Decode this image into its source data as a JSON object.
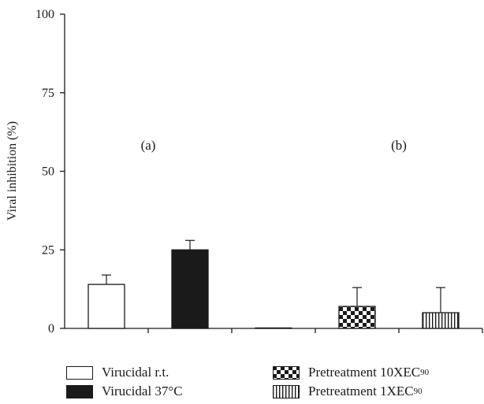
{
  "chart_data": {
    "type": "bar",
    "ylabel": "Viral inhibition (%)",
    "xlabel": "",
    "ylim": [
      0,
      100
    ],
    "yticks": [
      0,
      25,
      50,
      75,
      100
    ],
    "grid": false,
    "legend_position": "bottom",
    "group_labels": [
      "(a)",
      "(b)"
    ],
    "categories": [
      "Virucidal r.t.",
      "Virucidal 37°C",
      "",
      "Pretreatment 10XEC90",
      "Pretreatment 1XEC90"
    ],
    "series": [
      {
        "name": "Virucidal r.t.",
        "value": 14,
        "error": 3,
        "fill": "white"
      },
      {
        "name": "Virucidal 37°C",
        "value": 25,
        "error": 3,
        "fill": "black"
      },
      {
        "name": "",
        "value": 0,
        "error": 0,
        "fill": "black"
      },
      {
        "name": "Pretreatment 10XEC90",
        "value": 7,
        "error": 6,
        "fill": "checker"
      },
      {
        "name": "Pretreatment 1XEC90",
        "value": 5,
        "error": 8,
        "fill": "vertical-stripes"
      }
    ],
    "colors": {
      "bar_edge": "#1a1a1a",
      "dark_fill": "#1a1a1a",
      "axis": "#1a1a1a"
    }
  },
  "legend": {
    "items": [
      {
        "label": "Virucidal r.t.",
        "sub": "",
        "fill": "white"
      },
      {
        "label": "Virucidal 37°C",
        "sub": "",
        "fill": "black"
      },
      {
        "label": "Pretreatment 10XEC",
        "sub": "90",
        "fill": "checker"
      },
      {
        "label": "Pretreatment 1XEC",
        "sub": "90",
        "fill": "vertical-stripes"
      }
    ]
  }
}
